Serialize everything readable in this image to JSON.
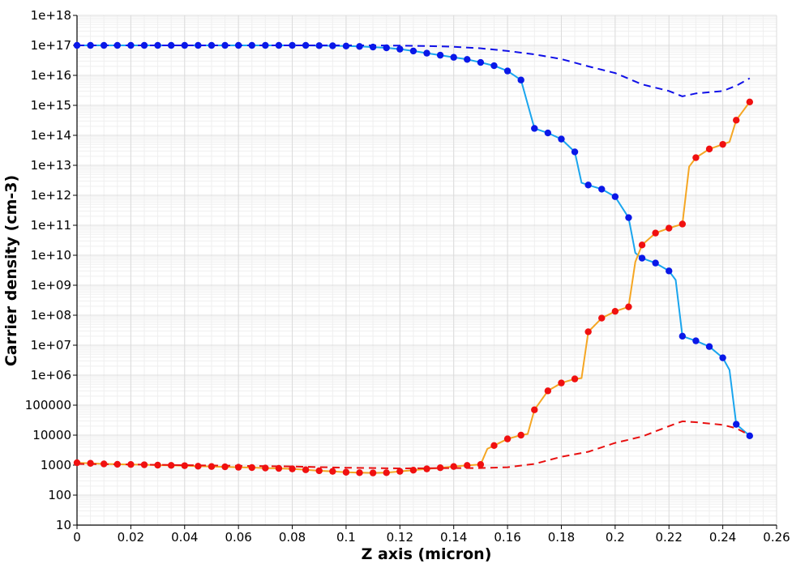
{
  "chart_data": {
    "type": "line",
    "xlabel": "Z axis (micron)",
    "ylabel": "Carrier density (cm-3)",
    "xlim": [
      0,
      0.26
    ],
    "ylim": [
      10,
      1e+18
    ],
    "yscale": "log",
    "grid": true,
    "x_ticks": [
      0,
      0.02,
      0.04,
      0.06,
      0.08,
      0.1,
      0.12,
      0.14,
      0.16,
      0.18,
      0.2,
      0.22,
      0.24,
      0.26
    ],
    "x_tick_labels": [
      "0",
      "0.02",
      "0.04",
      "0.06",
      "0.08",
      "0.1",
      "0.12",
      "0.14",
      "0.16",
      "0.18",
      "0.2",
      "0.22",
      "0.24",
      "0.26"
    ],
    "y_ticks": [
      10,
      100,
      1000,
      10000,
      100000,
      1000000.0,
      10000000.0,
      100000000.0,
      1000000000.0,
      10000000000.0,
      100000000000.0,
      1000000000000.0,
      10000000000000.0,
      100000000000000.0,
      1000000000000000.0,
      1e+16,
      1e+17,
      1e+18
    ],
    "y_tick_labels": [
      "10",
      "100",
      "1000",
      "10000",
      "100000",
      "1e+06",
      "1e+07",
      "1e+08",
      "1e+09",
      "1e+10",
      "1e+11",
      "1e+12",
      "1e+13",
      "1e+14",
      "1e+15",
      "1e+16",
      "1e+17",
      "1e+18"
    ],
    "series": [
      {
        "style": "solid",
        "color": "#1aa5ee",
        "marker_color": "#0a18e8",
        "x": [
          0,
          0.005,
          0.01,
          0.015,
          0.02,
          0.025,
          0.03,
          0.035,
          0.04,
          0.045,
          0.05,
          0.055,
          0.06,
          0.065,
          0.07,
          0.075,
          0.08,
          0.085,
          0.09,
          0.095,
          0.1,
          0.105,
          0.11,
          0.115,
          0.12,
          0.125,
          0.13,
          0.135,
          0.14,
          0.145,
          0.15,
          0.155,
          0.16,
          0.165,
          0.17,
          0.175,
          0.18,
          0.185,
          0.1875,
          0.19,
          0.195,
          0.2,
          0.205,
          0.2075,
          0.21,
          0.215,
          0.22,
          0.2225,
          0.225,
          0.23,
          0.235,
          0.24,
          0.2425,
          0.245,
          0.25
        ],
        "y": [
          1e+17,
          1e+17,
          1e+17,
          1e+17,
          1e+17,
          1e+17,
          1e+17,
          1e+17,
          1e+17,
          1e+17,
          1e+17,
          1e+17,
          1e+17,
          1e+17,
          1e+17,
          1e+17,
          1e+17,
          1e+17,
          9.8e+16,
          9.7e+16,
          9.5e+16,
          9.2e+16,
          8.8e+16,
          8.3e+16,
          7.5e+16,
          6.5e+16,
          5.5e+16,
          4.7e+16,
          4e+16,
          3.4e+16,
          2.7e+16,
          2.1e+16,
          1.4e+16,
          7000000000000000.0,
          170000000000000.0,
          120000000000000.0,
          75000000000000.0,
          28000000000000.0,
          2600000000000.0,
          2200000000000.0,
          1600000000000.0,
          900000000000.0,
          180000000000.0,
          12000000000.0,
          8000000000.0,
          5500000000.0,
          3000000000.0,
          1500000000.0,
          20000000.0,
          14000000.0,
          9000000.0,
          3800000.0,
          1500000.0,
          23000.0,
          9500.0
        ],
        "markers_x": [
          0,
          0.005,
          0.01,
          0.015,
          0.02,
          0.025,
          0.03,
          0.035,
          0.04,
          0.045,
          0.05,
          0.055,
          0.06,
          0.065,
          0.07,
          0.075,
          0.08,
          0.085,
          0.09,
          0.095,
          0.1,
          0.105,
          0.11,
          0.115,
          0.12,
          0.125,
          0.13,
          0.135,
          0.14,
          0.145,
          0.15,
          0.155,
          0.16,
          0.165,
          0.17,
          0.175,
          0.18,
          0.185,
          0.19,
          0.195,
          0.2,
          0.205,
          0.21,
          0.215,
          0.22,
          0.225,
          0.23,
          0.235,
          0.24,
          0.245,
          0.25
        ],
        "markers_y": [
          1e+17,
          1e+17,
          1e+17,
          1e+17,
          1e+17,
          1e+17,
          1e+17,
          1e+17,
          1e+17,
          1e+17,
          1e+17,
          1e+17,
          1e+17,
          1e+17,
          1e+17,
          1e+17,
          1e+17,
          1e+17,
          9.8e+16,
          9.7e+16,
          9.5e+16,
          9.2e+16,
          8.8e+16,
          8.3e+16,
          7.5e+16,
          6.5e+16,
          5.5e+16,
          4.7e+16,
          4e+16,
          3.4e+16,
          2.7e+16,
          2.1e+16,
          1.4e+16,
          7000000000000000.0,
          170000000000000.0,
          120000000000000.0,
          75000000000000.0,
          28000000000000.0,
          2200000000000.0,
          1600000000000.0,
          900000000000.0,
          180000000000.0,
          8000000000.0,
          5500000000.0,
          3000000000.0,
          20000000.0,
          14000000.0,
          9000000.0,
          3800000.0,
          23000.0,
          9500.0
        ]
      },
      {
        "style": "solid",
        "color": "#f5a623",
        "marker_color": "#f01010",
        "x": [
          0,
          0.005,
          0.01,
          0.015,
          0.02,
          0.025,
          0.03,
          0.035,
          0.04,
          0.045,
          0.05,
          0.055,
          0.06,
          0.065,
          0.07,
          0.075,
          0.08,
          0.085,
          0.09,
          0.095,
          0.1,
          0.105,
          0.11,
          0.115,
          0.12,
          0.125,
          0.13,
          0.135,
          0.14,
          0.145,
          0.15,
          0.1525,
          0.155,
          0.16,
          0.165,
          0.1675,
          0.17,
          0.175,
          0.18,
          0.185,
          0.1875,
          0.19,
          0.195,
          0.2,
          0.205,
          0.2075,
          0.21,
          0.215,
          0.22,
          0.225,
          0.2275,
          0.23,
          0.235,
          0.24,
          0.2425,
          0.245,
          0.25
        ],
        "y": [
          1200,
          1150,
          1100,
          1070,
          1050,
          1030,
          1000,
          980,
          960,
          920,
          900,
          880,
          850,
          830,
          800,
          780,
          750,
          700,
          650,
          620,
          580,
          560,
          550,
          560,
          620,
          680,
          750,
          820,
          900,
          980,
          1050,
          3500,
          4500,
          7500,
          10000,
          11000,
          70000.0,
          300000.0,
          550000.0,
          750000.0,
          800000.0,
          28000000.0,
          80000000.0,
          135000000.0,
          190000000.0,
          6000000000.0,
          22000000000.0,
          55000000000.0,
          80000000000.0,
          110000000000.0,
          9000000000000.0,
          18000000000000.0,
          35000000000000.0,
          50000000000000.0,
          60000000000000.0,
          320000000000000.0,
          1300000000000000.0
        ],
        "markers_x": [
          0,
          0.005,
          0.01,
          0.015,
          0.02,
          0.025,
          0.03,
          0.035,
          0.04,
          0.045,
          0.05,
          0.055,
          0.06,
          0.065,
          0.07,
          0.075,
          0.08,
          0.085,
          0.09,
          0.095,
          0.1,
          0.105,
          0.11,
          0.115,
          0.12,
          0.125,
          0.13,
          0.135,
          0.14,
          0.145,
          0.15,
          0.155,
          0.16,
          0.165,
          0.17,
          0.175,
          0.18,
          0.185,
          0.19,
          0.195,
          0.2,
          0.205,
          0.21,
          0.215,
          0.22,
          0.225,
          0.23,
          0.235,
          0.24,
          0.245,
          0.25
        ],
        "markers_y": [
          1200,
          1150,
          1100,
          1070,
          1050,
          1030,
          1000,
          980,
          960,
          920,
          900,
          880,
          850,
          830,
          800,
          780,
          750,
          700,
          650,
          620,
          580,
          560,
          550,
          560,
          620,
          680,
          750,
          820,
          900,
          980,
          1050,
          4500,
          7500,
          10000,
          70000.0,
          300000.0,
          550000.0,
          750000.0,
          28000000.0,
          80000000.0,
          135000000.0,
          190000000.0,
          22000000000.0,
          55000000000.0,
          80000000000.0,
          110000000000.0,
          18000000000000.0,
          35000000000000.0,
          50000000000000.0,
          320000000000000.0,
          1300000000000000.0
        ]
      },
      {
        "style": "dashed",
        "color": "#1010e8",
        "x": [
          0,
          0.02,
          0.04,
          0.06,
          0.08,
          0.1,
          0.11,
          0.12,
          0.13,
          0.14,
          0.15,
          0.16,
          0.17,
          0.18,
          0.19,
          0.2,
          0.21,
          0.22,
          0.225,
          0.23,
          0.24,
          0.245,
          0.25
        ],
        "y": [
          1e+17,
          1e+17,
          1e+17,
          1e+17,
          1e+17,
          1e+17,
          1e+17,
          9.8e+16,
          9.5e+16,
          9e+16,
          8e+16,
          6.5e+16,
          5e+16,
          3.5e+16,
          2e+16,
          1.2e+16,
          5000000000000000.0,
          3000000000000000.0,
          2000000000000000.0,
          2500000000000000.0,
          3000000000000000.0,
          4500000000000000.0,
          8000000000000000.0
        ]
      },
      {
        "style": "dashed",
        "color": "#e81010",
        "x": [
          0,
          0.02,
          0.04,
          0.06,
          0.08,
          0.1,
          0.12,
          0.13,
          0.14,
          0.15,
          0.16,
          0.17,
          0.18,
          0.19,
          0.2,
          0.21,
          0.22,
          0.225,
          0.23,
          0.24,
          0.245,
          0.25
        ],
        "y": [
          1100,
          1050,
          1000,
          950,
          900,
          820,
          780,
          790,
          800,
          800,
          850,
          1100,
          1900,
          2800,
          5500,
          9000,
          20000,
          29000,
          27000,
          22000,
          17000,
          10000
        ]
      }
    ]
  }
}
